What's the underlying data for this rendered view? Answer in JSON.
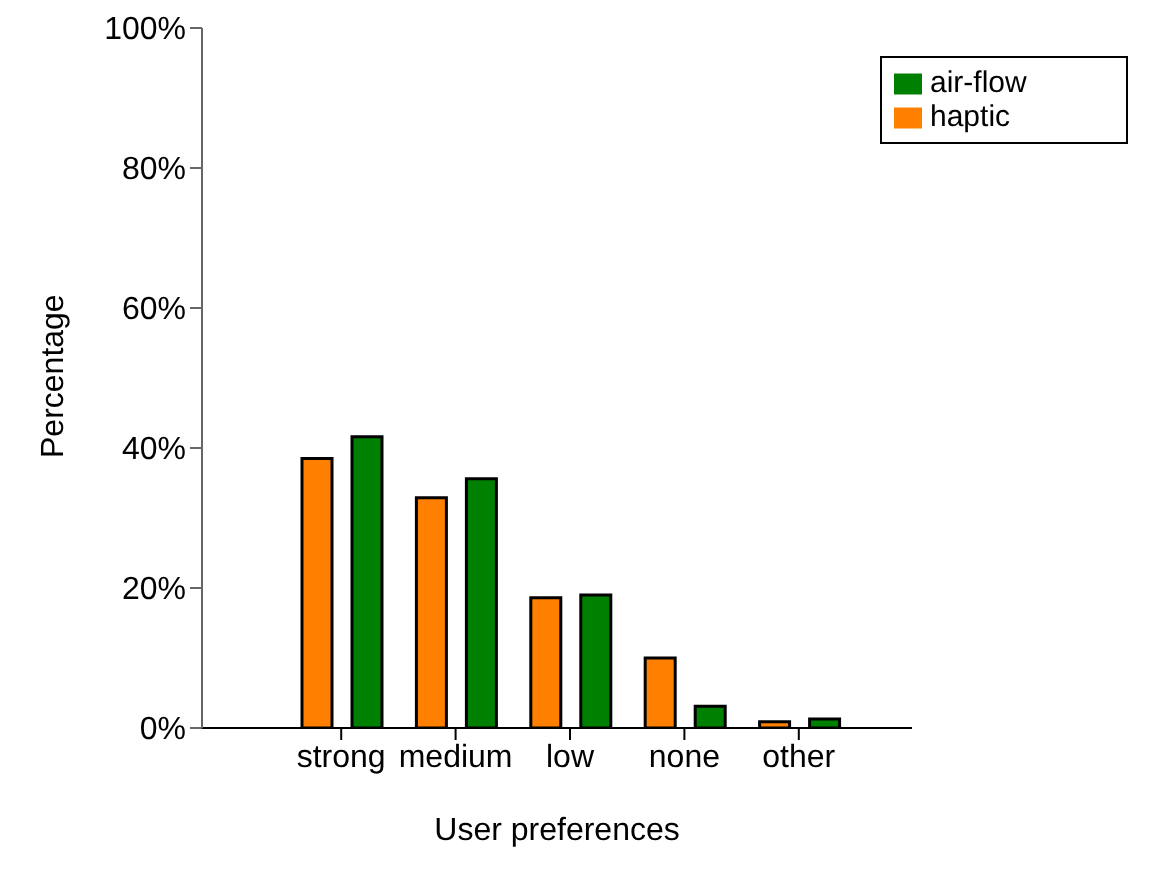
{
  "chart_data": {
    "type": "bar",
    "xlabel": "User preferences",
    "ylabel": "Percentage",
    "categories": [
      "strong",
      "medium",
      "low",
      "none",
      "other"
    ],
    "series": [
      {
        "name": "haptic",
        "color": "#ff8000",
        "values": [
          38.5,
          32.9,
          18.6,
          10.0,
          0.9
        ]
      },
      {
        "name": "air-flow",
        "color": "#008000",
        "values": [
          41.6,
          35.6,
          19.0,
          3.1,
          1.3
        ]
      }
    ],
    "ylim": [
      0,
      100
    ],
    "yticks": [
      {
        "value": 0,
        "label": "0%"
      },
      {
        "value": 20,
        "label": "20%"
      },
      {
        "value": 40,
        "label": "40%"
      },
      {
        "value": 60,
        "label": "60%"
      },
      {
        "value": 80,
        "label": "80%"
      },
      {
        "value": 100,
        "label": "100%"
      }
    ],
    "grid": false,
    "legend": "top right"
  }
}
